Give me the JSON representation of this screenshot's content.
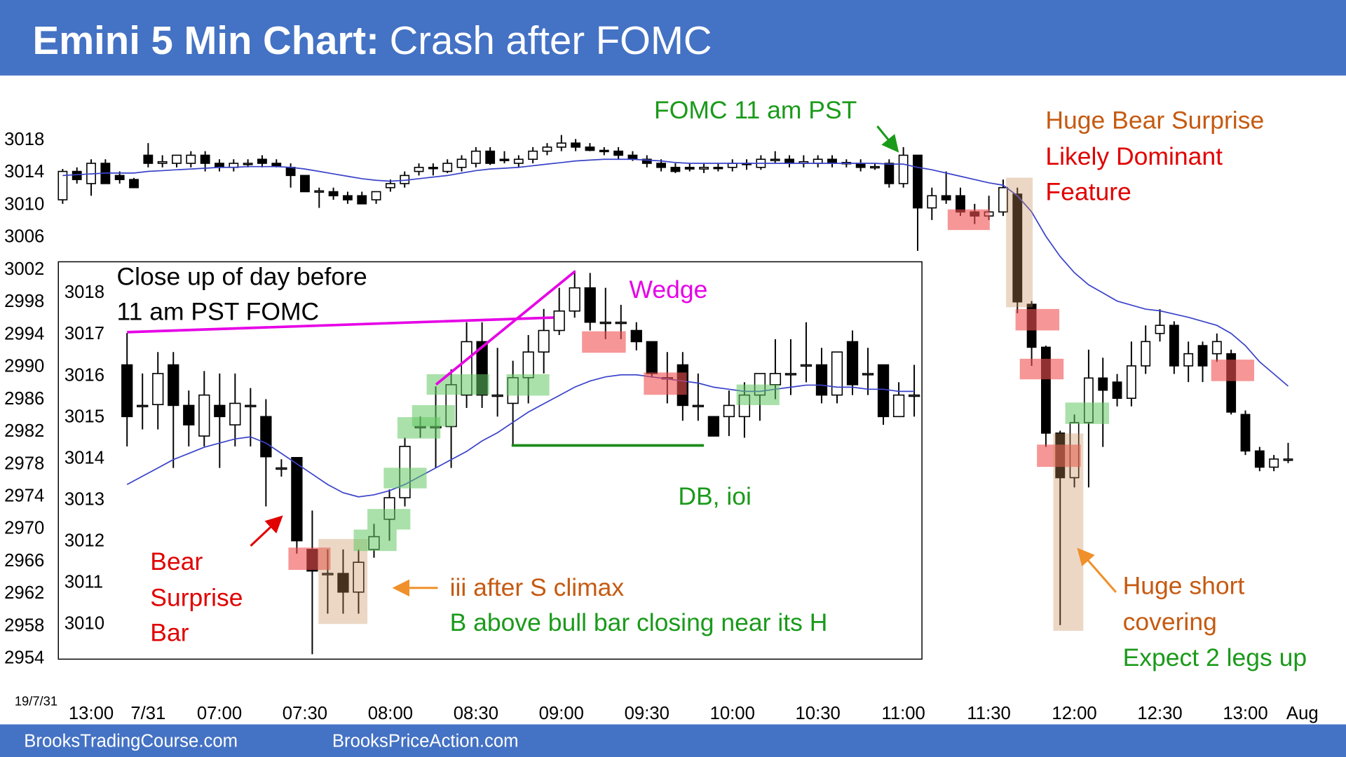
{
  "header": {
    "title_bold": "Emini 5 Min Chart:",
    "title_rest": "Crash after FOMC"
  },
  "date_label": "19/7/31",
  "footer": {
    "left": "BrooksTradingCourse.com",
    "right": "BrooksPriceAction.com"
  },
  "annotations": {
    "fomc": "FOMC 11 am PST",
    "bear_surprise_1": "Huge Bear Surprise",
    "bear_surprise_2": "Likely Dominant",
    "bear_surprise_3": "Feature",
    "close_up_1": "Close up of day before",
    "close_up_2": "11 am PST FOMC",
    "wedge": "Wedge",
    "db": "DB, ioi",
    "bear_bar_1": "Bear",
    "bear_bar_2": "Surprise",
    "bear_bar_3": "Bar",
    "iii": "iii after S climax",
    "b_above": "B above bull bar closing near its H",
    "short_cover_1": "Huge short",
    "short_cover_2": "covering",
    "short_cover_3": "Expect 2 legs up"
  },
  "chart_data": [
    {
      "type": "candlestick",
      "bull_color": "#ffffff",
      "bear_color": "#000000",
      "line_color": "#3a43c9",
      "xlim": [
        -0.5,
        87.5
      ],
      "xticks": [
        {
          "value": 2,
          "label": "13:00"
        },
        {
          "value": 6,
          "label": "7/31"
        },
        {
          "value": 11,
          "label": "07:00"
        },
        {
          "value": 17,
          "label": "07:30"
        },
        {
          "value": 23,
          "label": "08:00"
        },
        {
          "value": 29,
          "label": "08:30"
        },
        {
          "value": 35,
          "label": "09:00"
        },
        {
          "value": 41,
          "label": "09:30"
        },
        {
          "value": 47,
          "label": "10:00"
        },
        {
          "value": 53,
          "label": "10:30"
        },
        {
          "value": 59,
          "label": "11:00"
        },
        {
          "value": 65,
          "label": "11:30"
        },
        {
          "value": 71,
          "label": "12:00"
        },
        {
          "value": 77,
          "label": "12:30"
        },
        {
          "value": 83,
          "label": "13:00"
        },
        {
          "value": 87,
          "label": "Aug"
        }
      ],
      "ylim": [
        2952,
        3025
      ],
      "yticks": [
        2954,
        2958,
        2962,
        2966,
        2970,
        2974,
        2978,
        2982,
        2986,
        2990,
        2994,
        2998,
        3002,
        3006,
        3010,
        3014,
        3018
      ],
      "open": [
        3010.5,
        3014,
        3012.5,
        3015,
        3013.5,
        3013,
        3016,
        3015,
        3015,
        3015,
        3016,
        3015,
        3014.5,
        3015,
        3015.5,
        3015,
        3014.5,
        3013.5,
        3011.5,
        3011.5,
        3011,
        3011,
        3010.5,
        3012,
        3012.5,
        3014,
        3014.5,
        3014,
        3014.5,
        3015,
        3016.5,
        3015.5,
        3015,
        3015.5,
        3016.5,
        3017,
        3017.5,
        3017,
        3016.6,
        3016.5,
        3016,
        3015.5,
        3015,
        3014.5,
        3014.5,
        3014.3,
        3014.5,
        3014.5,
        3015,
        3014.5,
        3015.4,
        3015.5,
        3015,
        3015,
        3015.5,
        3015,
        3015,
        3014.5,
        3015,
        3012.5,
        3016,
        3009.5,
        3011,
        3011,
        3009,
        3008.5,
        3009,
        3011.2,
        2997.6,
        2992.3,
        2981.7,
        2976.2,
        2983,
        2988.5,
        2988,
        2986,
        2990,
        2994,
        2995,
        2990,
        2992.5,
        2991.5,
        2991.5,
        2984,
        2979.5,
        2977.5,
        2978.5
      ],
      "high": [
        3014.3,
        3014.5,
        3015.5,
        3015.5,
        3014,
        3013.2,
        3017.5,
        3016,
        3016,
        3016.5,
        3016.5,
        3015.5,
        3015.5,
        3015.5,
        3016,
        3015.5,
        3015,
        3013.5,
        3012,
        3012,
        3011.5,
        3011.5,
        3011.5,
        3013,
        3014,
        3015,
        3015,
        3015.5,
        3016,
        3017,
        3017,
        3016.5,
        3016,
        3017,
        3017.5,
        3018.5,
        3018,
        3017.5,
        3017,
        3017,
        3016.5,
        3016,
        3015.5,
        3015,
        3015,
        3015,
        3015,
        3015.5,
        3015.5,
        3016,
        3016.5,
        3016,
        3016,
        3016,
        3016,
        3015.5,
        3015.5,
        3015,
        3015.5,
        3017,
        3016,
        3012,
        3014,
        3012,
        3010,
        3011,
        3013,
        3012,
        2998,
        2992.5,
        2982,
        2984,
        2992,
        2991,
        2989,
        2993,
        2995,
        2997,
        2995.5,
        2993,
        2993,
        2994,
        2992,
        2984.5,
        2980,
        2979,
        2980.5
      ],
      "low": [
        3010,
        3012.5,
        3011,
        3012.5,
        3012.5,
        3012,
        3014.5,
        3014.5,
        3014.5,
        3014.5,
        3014,
        3014,
        3014,
        3014.5,
        3014.5,
        3014.5,
        3012,
        3011.5,
        3009.5,
        3010.5,
        3010,
        3010,
        3010,
        3011.5,
        3012,
        3013.5,
        3013.5,
        3013.8,
        3014,
        3014.5,
        3014.8,
        3015,
        3014.5,
        3015,
        3016,
        3016.5,
        3016.5,
        3016.5,
        3016,
        3015.5,
        3015.3,
        3014.5,
        3014,
        3013.8,
        3014,
        3013.8,
        3014,
        3014,
        3014.2,
        3014.2,
        3015,
        3014.5,
        3014.5,
        3014.5,
        3014.5,
        3014.5,
        3014,
        3014.2,
        3012,
        3012,
        3004.2,
        3008,
        3010,
        3008.5,
        3007.5,
        3008,
        3008.5,
        2996.5,
        2990,
        2980,
        2958,
        2975,
        2975,
        2980,
        2985,
        2985,
        2989,
        2993,
        2989,
        2988,
        2988,
        2990.5,
        2984,
        2979,
        2977,
        2977,
        2978
      ],
      "close": [
        3014,
        3013,
        3015,
        3012.5,
        3013,
        3012,
        3015,
        3015.2,
        3016,
        3016,
        3015,
        3014.5,
        3015,
        3015,
        3015,
        3014.6,
        3013.5,
        3011.5,
        3011.6,
        3011,
        3010.5,
        3010,
        3011.5,
        3012.5,
        3013.5,
        3014.5,
        3014.4,
        3015,
        3015.5,
        3016.5,
        3015,
        3015.4,
        3015.5,
        3016.5,
        3017,
        3017.5,
        3017,
        3016.6,
        3016.5,
        3016,
        3015.5,
        3015,
        3014.5,
        3014,
        3014.3,
        3014.5,
        3014.4,
        3015,
        3014.9,
        3015.5,
        3015.5,
        3015,
        3015.2,
        3015.5,
        3015,
        3015.1,
        3014.5,
        3014.6,
        3012.5,
        3016,
        3009.5,
        3011,
        3010.5,
        3009,
        3008.5,
        3009,
        3012,
        2997.9,
        2992.3,
        2981.7,
        2976.2,
        2983,
        2988.5,
        2987,
        2986,
        2990,
        2993,
        2995,
        2990,
        2991.5,
        2990,
        2993,
        2984.3,
        2979.5,
        2977.5,
        2978.5,
        2978.5
      ],
      "line_values": [
        3013.5,
        3013.6,
        3013.7,
        3013.8,
        3013.8,
        3013.8,
        3014,
        3014.1,
        3014.2,
        3014.3,
        3014.4,
        3014.5,
        3014.5,
        3014.6,
        3014.6,
        3014.6,
        3014.5,
        3014.3,
        3014,
        3013.7,
        3013.4,
        3013.1,
        3012.9,
        3012.8,
        3012.9,
        3013.1,
        3013.3,
        3013.5,
        3013.8,
        3014.1,
        3014.3,
        3014.4,
        3014.5,
        3014.7,
        3014.9,
        3015.1,
        3015.3,
        3015.4,
        3015.5,
        3015.5,
        3015.5,
        3015.4,
        3015.3,
        3015.1,
        3015,
        3015,
        3015,
        3015,
        3015,
        3015,
        3015,
        3015,
        3015,
        3015,
        3015,
        3015,
        3015,
        3015,
        3014.9,
        3014.9,
        3014.5,
        3014.2,
        3013.8,
        3013.4,
        3013,
        3012.6,
        3012.3,
        3011,
        3009,
        3006,
        3003.5,
        3001.5,
        3000,
        2999,
        2998,
        2997.5,
        2997,
        2996.8,
        2996.4,
        2996,
        2995.5,
        2995,
        2994,
        2992.5,
        2990.5,
        2989,
        2987.5
      ]
    },
    {
      "type": "candlestick",
      "bull_color": "#ffffff",
      "bear_color": "#000000",
      "line_color": "#3a43c9",
      "xlim": [
        -0.5,
        51.5
      ],
      "ylim": [
        3009.13,
        3018.73
      ],
      "yticks": [
        3010,
        3011,
        3012,
        3013,
        3014,
        3015,
        3016,
        3017,
        3018
      ],
      "open": [
        3016.24,
        3015.26,
        3015.28,
        3016.24,
        3015.26,
        3014.52,
        3015.26,
        3014.79,
        3015.26,
        3014.99,
        3013.75,
        3014.0,
        3011.78,
        3011.2,
        3011.2,
        3010.75,
        3011.78,
        3012.51,
        3013.03,
        3014.75,
        3014.75,
        3014.75,
        3015.51,
        3016.8,
        3015.51,
        3015.31,
        3015.93,
        3016.55,
        3017.07,
        3017.54,
        3018.1,
        3017.27,
        3017.27,
        3017.07,
        3016.8,
        3015.93,
        3016.24,
        3015.26,
        3014.99,
        3014.99,
        3014.99,
        3015.51,
        3015.76,
        3016.03,
        3016.24,
        3016.24,
        3015.51,
        3016.8,
        3016.03,
        3016.24,
        3014.99,
        3015.51
      ],
      "high": [
        3017.01,
        3016.03,
        3016.55,
        3016.55,
        3015.62,
        3016.09,
        3016.03,
        3016.03,
        3015.68,
        3015.41,
        3013.96,
        3014.0,
        3012.72,
        3011.78,
        3011.78,
        3011.78,
        3012.4,
        3013.23,
        3014.48,
        3014.99,
        3015.72,
        3016.13,
        3017.27,
        3017.27,
        3016.65,
        3016.34,
        3016.96,
        3017.59,
        3018.1,
        3018.52,
        3018.46,
        3018.1,
        3017.69,
        3017.27,
        3016.8,
        3016.55,
        3016.55,
        3016.03,
        3014.99,
        3015.62,
        3015.82,
        3016.03,
        3016.86,
        3016.86,
        3017.27,
        3016.65,
        3016.55,
        3017.07,
        3016.65,
        3016.24,
        3015.82,
        3016.24
      ],
      "low": [
        3014.27,
        3014.68,
        3014.68,
        3013.75,
        3014.27,
        3014.27,
        3013.75,
        3014.27,
        3014.27,
        3012.82,
        3013.54,
        3011.68,
        3009.25,
        3010.23,
        3010.23,
        3010.23,
        3011.58,
        3011.99,
        3012.82,
        3014.48,
        3013.75,
        3013.75,
        3015.2,
        3015.2,
        3014.99,
        3014.27,
        3015.31,
        3016.03,
        3016.96,
        3017.38,
        3017.07,
        3016.86,
        3016.86,
        3016.59,
        3015.93,
        3015.31,
        3014.89,
        3014.89,
        3014.52,
        3014.52,
        3014.48,
        3014.89,
        3015.41,
        3015.51,
        3015.82,
        3015.31,
        3015.31,
        3015.51,
        3015.51,
        3014.79,
        3014.99,
        3014.99
      ],
      "close": [
        3014.99,
        3015.26,
        3016.03,
        3015.26,
        3014.79,
        3015.51,
        3014.99,
        3015.31,
        3015.26,
        3014.02,
        3013.75,
        3011.99,
        3011.26,
        3011.2,
        3010.75,
        3011.47,
        3012.09,
        3013.03,
        3014.27,
        3014.75,
        3014.75,
        3015.76,
        3016.8,
        3015.51,
        3015.51,
        3015.93,
        3016.55,
        3017.07,
        3017.54,
        3018.1,
        3017.27,
        3017.27,
        3017.27,
        3016.8,
        3016.03,
        3015.93,
        3015.26,
        3015.26,
        3014.52,
        3015.26,
        3015.51,
        3016.03,
        3016.03,
        3016.03,
        3016.24,
        3015.51,
        3016.55,
        3015.76,
        3016.03,
        3014.99,
        3015.51,
        3015.51
      ],
      "line_values": [
        3013.35,
        3013.55,
        3013.75,
        3013.95,
        3014.1,
        3014.25,
        3014.35,
        3014.45,
        3014.5,
        3014.35,
        3014.1,
        3013.85,
        3013.6,
        3013.35,
        3013.15,
        3013.05,
        3013.1,
        3013.2,
        3013.35,
        3013.55,
        3013.75,
        3013.95,
        3014.15,
        3014.4,
        3014.6,
        3014.85,
        3015.1,
        3015.3,
        3015.5,
        3015.7,
        3015.85,
        3015.95,
        3016.0,
        3016.0,
        3015.95,
        3015.9,
        3015.85,
        3015.8,
        3015.7,
        3015.65,
        3015.6,
        3015.6,
        3015.65,
        3015.7,
        3015.75,
        3015.75,
        3015.7,
        3015.7,
        3015.65,
        3015.65,
        3015.6,
        3015.6
      ]
    }
  ]
}
